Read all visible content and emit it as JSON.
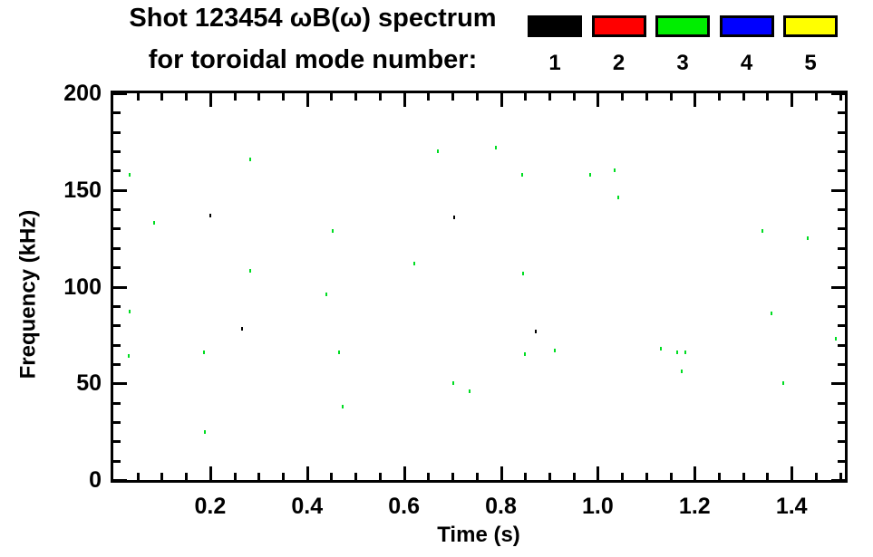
{
  "title": {
    "line1": "Shot 123454 ωB(ω) spectrum",
    "line2": "for toroidal mode number:"
  },
  "legend": {
    "items": [
      {
        "mode": "1",
        "color": "#000000"
      },
      {
        "mode": "2",
        "color": "#ff0000"
      },
      {
        "mode": "3",
        "color": "#00ee00"
      },
      {
        "mode": "4",
        "color": "#0000ff"
      },
      {
        "mode": "5",
        "color": "#ffff00"
      }
    ]
  },
  "chart_data": {
    "type": "scatter",
    "title": "Shot 123454 ωB(ω) spectrum for toroidal mode number: 1 2 3 4 5",
    "xlabel": "Time (s)",
    "ylabel": "Frequency (kHz)",
    "xlim": [
      0.0,
      1.51
    ],
    "ylim": [
      0,
      200
    ],
    "x_major_ticks": [
      0.2,
      0.4,
      0.6,
      0.8,
      1.0,
      1.2,
      1.4
    ],
    "x_major_labels": [
      "0.2",
      "0.4",
      "0.6",
      "0.8",
      "1.0",
      "1.2",
      "1.4"
    ],
    "x_minor_step": 0.05,
    "y_major_ticks": [
      0,
      50,
      100,
      150,
      200
    ],
    "y_major_labels": [
      "0",
      "50",
      "100",
      "150",
      "200"
    ],
    "y_minor_step": 10,
    "grid": false,
    "legend_position": "top-right",
    "series": [
      {
        "name": "mode 1",
        "color": "#000000",
        "points": [
          [
            0.2,
            137
          ],
          [
            0.704,
            136
          ],
          [
            0.265,
            78
          ],
          [
            0.872,
            77
          ]
        ]
      },
      {
        "name": "mode 3",
        "color": "#00dd22",
        "points": [
          [
            0.283,
            166
          ],
          [
            0.033,
            158
          ],
          [
            0.085,
            133
          ],
          [
            0.452,
            129
          ],
          [
            0.67,
            170
          ],
          [
            0.622,
            112
          ],
          [
            0.283,
            108
          ],
          [
            0.789,
            172
          ],
          [
            0.843,
            158
          ],
          [
            0.985,
            158
          ],
          [
            1.035,
            160
          ],
          [
            1.043,
            146
          ],
          [
            1.339,
            129
          ],
          [
            1.433,
            125
          ],
          [
            0.846,
            107
          ],
          [
            0.439,
            96
          ],
          [
            0.033,
            87
          ],
          [
            0.187,
            66
          ],
          [
            0.031,
            64
          ],
          [
            0.465,
            66
          ],
          [
            0.702,
            50
          ],
          [
            0.735,
            46
          ],
          [
            0.474,
            38
          ],
          [
            0.189,
            25
          ],
          [
            1.359,
            86
          ],
          [
            1.491,
            73
          ],
          [
            0.85,
            65
          ],
          [
            0.911,
            67
          ],
          [
            1.131,
            68
          ],
          [
            1.163,
            66
          ],
          [
            1.18,
            66
          ],
          [
            1.174,
            56
          ],
          [
            1.383,
            50
          ]
        ]
      }
    ]
  }
}
